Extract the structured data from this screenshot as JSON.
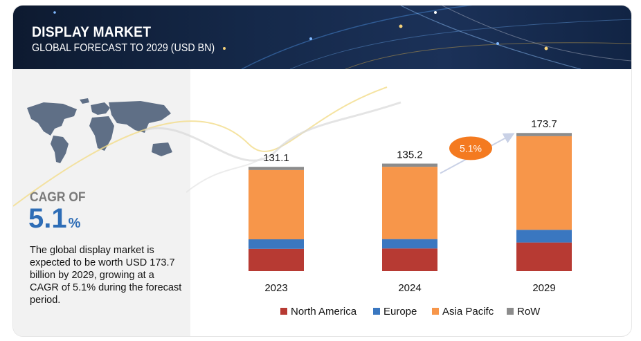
{
  "header": {
    "title": "DISPLAY MARKET",
    "subtitle": "GLOBAL FORECAST TO 2029 (USD BN)"
  },
  "sidebar": {
    "cagr_label": "CAGR OF",
    "cagr_value": "5.1",
    "cagr_unit": "%",
    "description": "The global display market is expected to be worth USD 173.7 billion by 2029, growing at a CAGR of 5.1% during the forecast period."
  },
  "colors": {
    "North America": "#b73a33",
    "Europe": "#3a77c0",
    "Asia Pacifc": "#f7964a",
    "RoW": "#8c8c8c",
    "accent": "#f47a20",
    "cagr_text": "#2e6db6"
  },
  "chart_data": {
    "type": "bar",
    "stacked": true,
    "categories": [
      "2023",
      "2024",
      "2029"
    ],
    "totals": [
      "131.1",
      "135.2",
      "173.7"
    ],
    "series": [
      {
        "name": "North America",
        "values": [
          28.0,
          28.5,
          36.0
        ]
      },
      {
        "name": "Europe",
        "values": [
          12.0,
          11.8,
          16.0
        ]
      },
      {
        "name": "Asia Pacifc",
        "values": [
          87.1,
          90.9,
          117.7
        ]
      },
      {
        "name": "RoW",
        "values": [
          4.0,
          4.0,
          4.0
        ]
      }
    ],
    "annotation": "5.1%",
    "legend_position": "bottom",
    "ylim": [
      0,
      190
    ],
    "grid": false
  }
}
